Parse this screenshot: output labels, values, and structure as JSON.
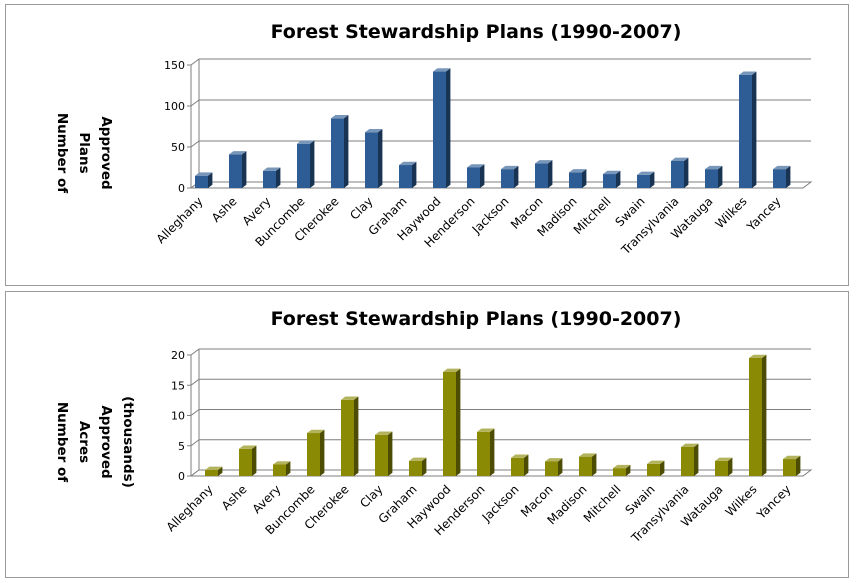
{
  "chart_data": [
    {
      "type": "bar",
      "title": "Forest Stewardship Plans (1990-2007)",
      "ylabel_lines": [
        "Number of",
        "Plans",
        "Approved"
      ],
      "xlabel": "",
      "ylim": [
        0,
        150
      ],
      "yticks": [
        0,
        50,
        100,
        150
      ],
      "grid": true,
      "bar_color": "#2e5d95",
      "categories": [
        "Alleghany",
        "Ashe",
        "Avery",
        "Buncombe",
        "Cherokee",
        "Clay",
        "Graham",
        "Haywood",
        "Henderson",
        "Jackson",
        "Macon",
        "Madison",
        "Mitchell",
        "Swain",
        "Transylvania",
        "Watauga",
        "Wilkes",
        "Yancey"
      ],
      "values": [
        15,
        41,
        21,
        54,
        85,
        68,
        28,
        142,
        25,
        23,
        30,
        19,
        17,
        16,
        33,
        23,
        138,
        23
      ]
    },
    {
      "type": "bar",
      "title": "Forest Stewardship Plans (1990-2007)",
      "ylabel_lines": [
        "Number of",
        "Acres",
        "Approved",
        "(thousands)"
      ],
      "xlabel": "",
      "ylim": [
        0,
        20
      ],
      "yticks": [
        0,
        5,
        10,
        15,
        20
      ],
      "grid": true,
      "bar_color": "#8a8a05",
      "categories": [
        "Alleghany",
        "Ashe",
        "Avery",
        "Buncombe",
        "Cherokee",
        "Clay",
        "Graham",
        "Haywood",
        "Henderson",
        "Jackson",
        "Macon",
        "Madison",
        "Mitchell",
        "Swain",
        "Transylvania",
        "Watauga",
        "Wilkes",
        "Yancey"
      ],
      "values": [
        1.0,
        4.5,
        1.9,
        7.1,
        12.6,
        6.8,
        2.5,
        17.2,
        7.3,
        3.0,
        2.4,
        3.2,
        1.3,
        2.0,
        4.8,
        2.5,
        19.5,
        2.8
      ]
    }
  ]
}
